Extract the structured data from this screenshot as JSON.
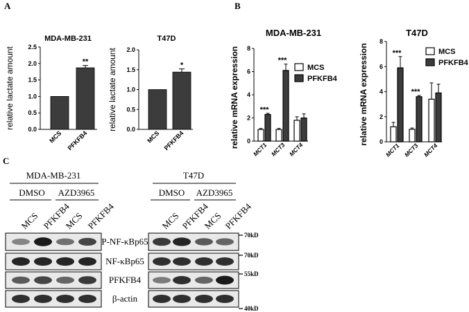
{
  "panels": {
    "a": "A",
    "b": "B",
    "c": "C"
  },
  "chart_data": [
    {
      "type": "bar",
      "panel": "A",
      "title": "MDA-MB-231",
      "ylabel": "relative lactate amount",
      "categories": [
        "MCS",
        "PFKFB4"
      ],
      "values": [
        1.0,
        1.87
      ],
      "errors": [
        0,
        0.07
      ],
      "significance": [
        "",
        "**"
      ],
      "ylim": [
        0,
        2.5
      ],
      "yticks": [
        "0.0",
        "0.5",
        "1.0",
        "1.5",
        "2.0",
        "2.5"
      ],
      "bar_color": "#3c3c3c"
    },
    {
      "type": "bar",
      "panel": "A",
      "title": "T47D",
      "ylabel": "relative lactate amount",
      "categories": [
        "MCS",
        "PFKFB4"
      ],
      "values": [
        1.0,
        1.44
      ],
      "errors": [
        0,
        0.08
      ],
      "significance": [
        "",
        "*"
      ],
      "ylim": [
        0,
        2.0
      ],
      "yticks": [
        "0.0",
        "0.5",
        "1.0",
        "1.5",
        "2.0"
      ],
      "bar_color": "#3c3c3c"
    },
    {
      "type": "bar",
      "panel": "B",
      "title": "MDA-MB-231",
      "ylabel": "relative mRNA expression",
      "categories": [
        "MCT1",
        "MCT3",
        "MCT4"
      ],
      "series": [
        {
          "name": "MCS",
          "values": [
            1.0,
            1.0,
            1.8
          ],
          "errors": [
            0.1,
            0.1,
            0.3
          ]
        },
        {
          "name": "PFKFB4",
          "values": [
            2.3,
            6.1,
            2.0
          ],
          "errors": [
            0.1,
            0.55,
            0.35
          ]
        }
      ],
      "significance": [
        "***",
        "***",
        ""
      ],
      "ylim": [
        0,
        8
      ],
      "yticks": [
        "0",
        "2",
        "4",
        "6",
        "8"
      ],
      "legend": "top-right",
      "colors": [
        "#ffffff",
        "#3c3c3c"
      ]
    },
    {
      "type": "bar",
      "panel": "B",
      "title": "T47D",
      "ylabel": "relative mRNA expression",
      "categories": [
        "MCT1",
        "MCT3",
        "MCT4"
      ],
      "series": [
        {
          "name": "MCS",
          "values": [
            1.2,
            1.0,
            3.4
          ],
          "errors": [
            0.35,
            0.1,
            1.3
          ]
        },
        {
          "name": "PFKFB4",
          "values": [
            5.9,
            3.6,
            3.9
          ],
          "errors": [
            0.9,
            0.1,
            0.7
          ]
        }
      ],
      "significance": [
        "***",
        "***",
        ""
      ],
      "ylim": [
        0,
        8
      ],
      "yticks": [
        "0",
        "2",
        "4",
        "6",
        "8"
      ],
      "legend": "top-right",
      "colors": [
        "#ffffff",
        "#3c3c3c"
      ]
    }
  ],
  "western": {
    "cell_lines": [
      "MDA-MB-231",
      "T47D"
    ],
    "treatments": [
      "DMSO",
      "AZD3965"
    ],
    "lanes": [
      "MCS",
      "PFKFB4",
      "MCS",
      "PFKFB4"
    ],
    "proteins": [
      "P-NF-κBp65",
      "NF-κBp65",
      "PFKFB4",
      "β-actin"
    ],
    "markers": [
      "70kD",
      "70kD",
      "55kD",
      "40kD"
    ],
    "band_intensity": {
      "MDA-MB-231": [
        [
          0.45,
          0.95,
          0.55,
          0.75
        ],
        [
          0.9,
          0.9,
          0.9,
          0.9
        ],
        [
          0.65,
          0.75,
          0.6,
          0.8
        ],
        [
          0.85,
          0.85,
          0.85,
          0.85
        ]
      ],
      "T47D": [
        [
          0.8,
          0.9,
          0.65,
          0.6
        ],
        [
          0.85,
          0.85,
          0.85,
          0.85
        ],
        [
          0.5,
          0.85,
          0.6,
          0.95
        ],
        [
          0.85,
          0.85,
          0.85,
          0.85
        ]
      ]
    }
  }
}
